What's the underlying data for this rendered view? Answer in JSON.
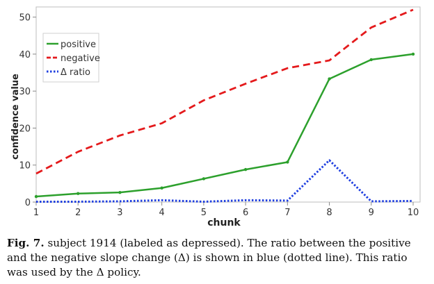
{
  "chart_data": {
    "type": "line",
    "xlabel": "chunk",
    "ylabel": "confidence value",
    "x": [
      1,
      2,
      3,
      4,
      5,
      6,
      7,
      8,
      9,
      10
    ],
    "xlim": [
      1,
      10
    ],
    "ylim": [
      0,
      52
    ],
    "xticks": [
      1,
      2,
      3,
      4,
      5,
      6,
      7,
      8,
      9,
      10
    ],
    "yticks": [
      0,
      10,
      20,
      30,
      40,
      50
    ],
    "grid": false,
    "legend_position": "top-left",
    "series": [
      {
        "name": "positive",
        "color": "#2ca02c",
        "style": "solid",
        "markers": true,
        "values": [
          1.5,
          2.3,
          2.6,
          3.8,
          6.3,
          8.8,
          10.8,
          33.3,
          38.5,
          40.0
        ]
      },
      {
        "name": "negative",
        "color": "#e41a1c",
        "style": "dashed",
        "markers": false,
        "values": [
          7.7,
          13.6,
          18.0,
          21.3,
          27.5,
          32.0,
          36.2,
          38.3,
          47.2,
          52.0
        ]
      },
      {
        "name": "Δ ratio",
        "color": "#1f3fe0",
        "style": "dotted",
        "markers": false,
        "values": [
          0.1,
          0.1,
          0.2,
          0.5,
          0.1,
          0.5,
          0.4,
          11.3,
          0.2,
          0.3
        ]
      }
    ]
  },
  "caption": {
    "label": "Fig. 7.",
    "text": "subject 1914 (labeled as depressed). The ratio between the positive and the negative slope change (Δ) is shown in blue (dotted line). This ratio was used by the Δ policy."
  }
}
